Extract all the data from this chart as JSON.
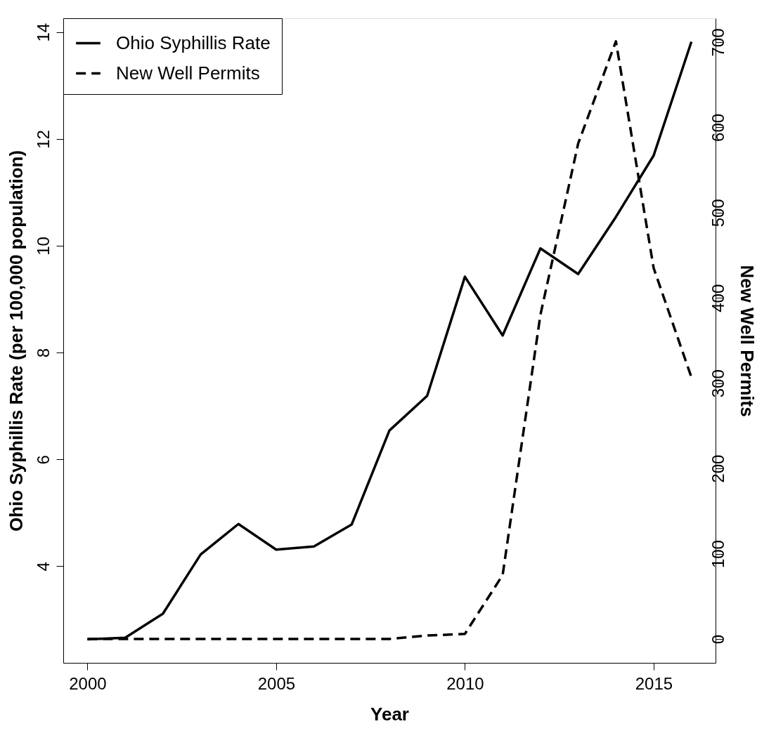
{
  "chart_data": {
    "type": "line",
    "xlabel": "Year",
    "ylabel": "Ohio Syphillis Rate (per 100,000 population)",
    "y2label": "New Well Permits",
    "x": [
      2000,
      2001,
      2002,
      2003,
      2004,
      2005,
      2006,
      2007,
      2008,
      2009,
      2010,
      2011,
      2012,
      2013,
      2014,
      2015,
      2016
    ],
    "series": [
      {
        "name": "Ohio Syphillis Rate",
        "color": "#000000",
        "line_style": "solid",
        "values": [
          2.63,
          2.66,
          3.11,
          4.22,
          4.79,
          4.31,
          4.37,
          4.78,
          6.54,
          7.19,
          9.42,
          8.32,
          9.95,
          9.47,
          10.54,
          11.69,
          13.82
        ]
      },
      {
        "name": "New Well Permits",
        "color": "#000000",
        "line_style": "dashed",
        "axis": "y2",
        "values": [
          0,
          0,
          0,
          0,
          0,
          0,
          0,
          0,
          0,
          4,
          6,
          75,
          380,
          581,
          701,
          435,
          307
        ]
      }
    ],
    "xlim": [
      1999.36,
      2016.64
    ],
    "xticks": [
      2000,
      2005,
      2010,
      2015
    ],
    "ylim": [
      2.19,
      14.26
    ],
    "yticks": [
      4,
      6,
      8,
      10,
      12,
      14
    ],
    "y2lim": [
      -28,
      728
    ],
    "y2ticks": [
      0,
      100,
      200,
      300,
      400,
      500,
      600,
      700
    ],
    "grid": false,
    "legend": "top left",
    "marker": "none"
  }
}
